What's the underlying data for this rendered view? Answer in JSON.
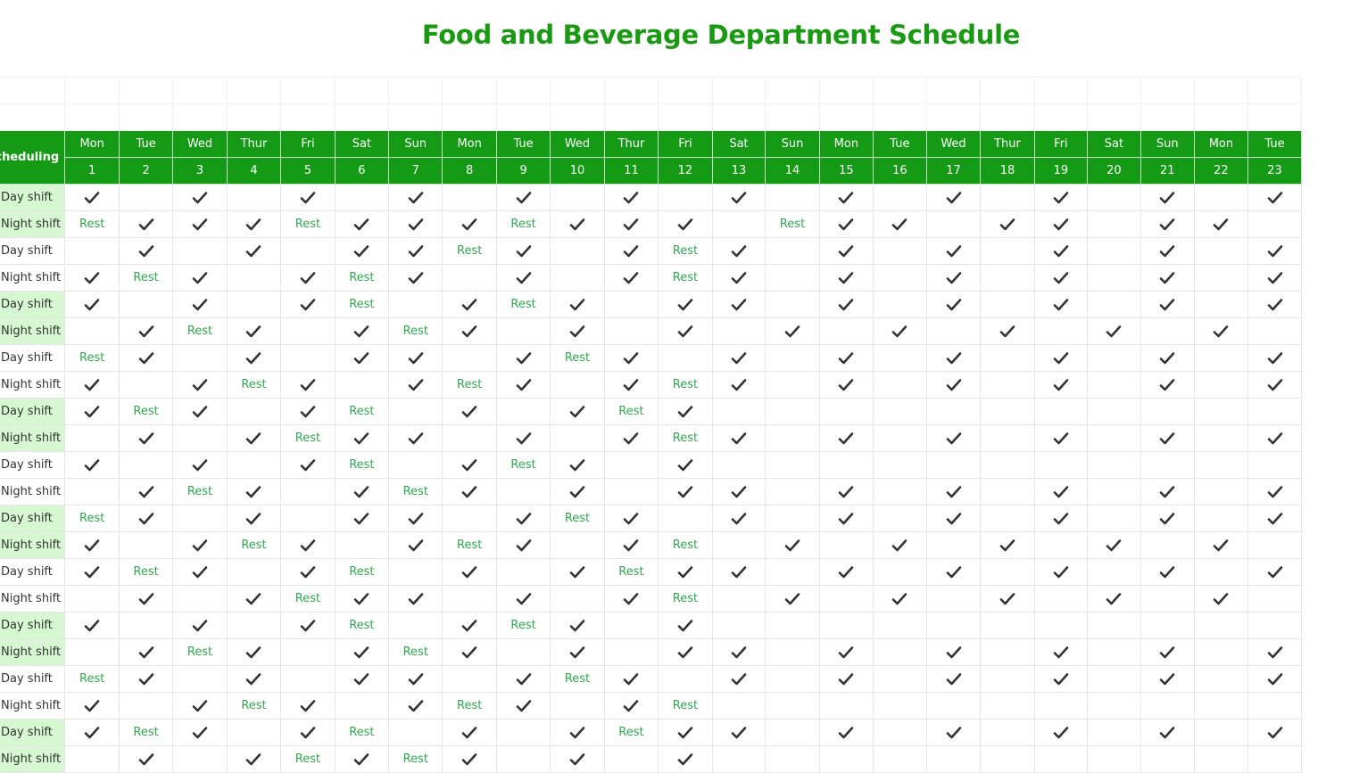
{
  "title": "Food and Beverage Department Schedule",
  "header_label": "Scheduling",
  "accent_color": "#149a14",
  "highlight_color": "#d6f7d2",
  "rest_color": "#2fa84f",
  "check_icon": "check-icon",
  "days": [
    {
      "dow": "Mon",
      "date": "1"
    },
    {
      "dow": "Tue",
      "date": "2"
    },
    {
      "dow": "Wed",
      "date": "3"
    },
    {
      "dow": "Thur",
      "date": "4"
    },
    {
      "dow": "Fri",
      "date": "5"
    },
    {
      "dow": "Sat",
      "date": "6"
    },
    {
      "dow": "Sun",
      "date": "7"
    },
    {
      "dow": "Mon",
      "date": "8"
    },
    {
      "dow": "Tue",
      "date": "9"
    },
    {
      "dow": "Wed",
      "date": "10"
    },
    {
      "dow": "Thur",
      "date": "11"
    },
    {
      "dow": "Fri",
      "date": "12"
    },
    {
      "dow": "Sat",
      "date": "13"
    },
    {
      "dow": "Sun",
      "date": "14"
    },
    {
      "dow": "Mon",
      "date": "15"
    },
    {
      "dow": "Tue",
      "date": "16"
    },
    {
      "dow": "Wed",
      "date": "17"
    },
    {
      "dow": "Thur",
      "date": "18"
    },
    {
      "dow": "Fri",
      "date": "19"
    },
    {
      "dow": "Sat",
      "date": "20"
    },
    {
      "dow": "Sun",
      "date": "21"
    },
    {
      "dow": "Mon",
      "date": "22"
    },
    {
      "dow": "Tue",
      "date": "23"
    }
  ],
  "rows": [
    {
      "label": "Day shift",
      "highlight": true,
      "cells": [
        "C",
        "",
        "C",
        "",
        "C",
        "",
        "C",
        "",
        "C",
        "",
        "C",
        "",
        "C",
        "",
        "C",
        "",
        "C",
        "",
        "C",
        "",
        "C",
        "",
        "C"
      ]
    },
    {
      "label": "Night shift",
      "highlight": true,
      "cells": [
        "R",
        "C",
        "C",
        "C",
        "R",
        "C",
        "C",
        "C",
        "R",
        "C",
        "C",
        "C",
        "",
        "R",
        "C",
        "C",
        "",
        "C",
        "C",
        "",
        "C",
        "C",
        ""
      ]
    },
    {
      "label": "Day shift",
      "highlight": false,
      "cells": [
        "",
        "C",
        "",
        "C",
        "",
        "C",
        "C",
        "R",
        "C",
        "",
        "C",
        "R",
        "C",
        "",
        "C",
        "",
        "C",
        "",
        "C",
        "",
        "C",
        "",
        "C"
      ]
    },
    {
      "label": "Night shift",
      "highlight": false,
      "cells": [
        "C",
        "R",
        "C",
        "",
        "C",
        "R",
        "C",
        "",
        "C",
        "",
        "C",
        "R",
        "C",
        "",
        "C",
        "",
        "C",
        "",
        "C",
        "",
        "C",
        "",
        "C"
      ]
    },
    {
      "label": "Day shift",
      "highlight": true,
      "cells": [
        "C",
        "",
        "C",
        "",
        "C",
        "R",
        "",
        "C",
        "R",
        "C",
        "",
        "C",
        "C",
        "",
        "C",
        "",
        "C",
        "",
        "C",
        "",
        "C",
        "",
        "C"
      ]
    },
    {
      "label": "Night shift",
      "highlight": true,
      "cells": [
        "",
        "C",
        "R",
        "C",
        "",
        "C",
        "R",
        "C",
        "",
        "C",
        "",
        "C",
        "",
        "C",
        "",
        "C",
        "",
        "C",
        "",
        "C",
        "",
        "C",
        ""
      ]
    },
    {
      "label": "Day shift",
      "highlight": false,
      "cells": [
        "R",
        "C",
        "",
        "C",
        "",
        "C",
        "C",
        "",
        "C",
        "R",
        "C",
        "",
        "C",
        "",
        "C",
        "",
        "C",
        "",
        "C",
        "",
        "C",
        "",
        "C"
      ]
    },
    {
      "label": "Night shift",
      "highlight": false,
      "cells": [
        "C",
        "",
        "C",
        "R",
        "C",
        "",
        "C",
        "R",
        "C",
        "",
        "C",
        "R",
        "C",
        "",
        "C",
        "",
        "C",
        "",
        "C",
        "",
        "C",
        "",
        "C"
      ]
    },
    {
      "label": "Day shift",
      "highlight": true,
      "cells": [
        "C",
        "R",
        "C",
        "",
        "C",
        "R",
        "",
        "C",
        "",
        "C",
        "R",
        "C",
        "",
        "",
        "",
        "",
        "",
        "",
        "",
        "",
        "",
        "",
        ""
      ]
    },
    {
      "label": "Night shift",
      "highlight": true,
      "cells": [
        "",
        "C",
        "",
        "C",
        "R",
        "C",
        "C",
        "",
        "C",
        "",
        "C",
        "R",
        "C",
        "",
        "C",
        "",
        "C",
        "",
        "C",
        "",
        "C",
        "",
        "C"
      ]
    },
    {
      "label": "Day shift",
      "highlight": false,
      "cells": [
        "C",
        "",
        "C",
        "",
        "C",
        "R",
        "",
        "C",
        "R",
        "C",
        "",
        "C",
        "",
        "",
        "",
        "",
        "",
        "",
        "",
        "",
        "",
        "",
        ""
      ]
    },
    {
      "label": "Night shift",
      "highlight": false,
      "cells": [
        "",
        "C",
        "R",
        "C",
        "",
        "C",
        "R",
        "C",
        "",
        "C",
        "",
        "C",
        "C",
        "",
        "C",
        "",
        "C",
        "",
        "C",
        "",
        "C",
        "",
        "C"
      ]
    },
    {
      "label": "Day shift",
      "highlight": true,
      "cells": [
        "R",
        "C",
        "",
        "C",
        "",
        "C",
        "C",
        "",
        "C",
        "R",
        "C",
        "",
        "C",
        "",
        "C",
        "",
        "C",
        "",
        "C",
        "",
        "C",
        "",
        "C"
      ]
    },
    {
      "label": "Night shift",
      "highlight": true,
      "cells": [
        "C",
        "",
        "C",
        "R",
        "C",
        "",
        "C",
        "R",
        "C",
        "",
        "C",
        "R",
        "",
        "C",
        "",
        "C",
        "",
        "C",
        "",
        "C",
        "",
        "C",
        ""
      ]
    },
    {
      "label": "Day shift",
      "highlight": false,
      "cells": [
        "C",
        "R",
        "C",
        "",
        "C",
        "R",
        "",
        "C",
        "",
        "C",
        "R",
        "C",
        "C",
        "",
        "C",
        "",
        "C",
        "",
        "C",
        "",
        "C",
        "",
        "C"
      ]
    },
    {
      "label": "Night shift",
      "highlight": false,
      "cells": [
        "",
        "C",
        "",
        "C",
        "R",
        "C",
        "C",
        "",
        "C",
        "",
        "C",
        "R",
        "",
        "C",
        "",
        "C",
        "",
        "C",
        "",
        "C",
        "",
        "C",
        ""
      ]
    },
    {
      "label": "Day shift",
      "highlight": true,
      "cells": [
        "C",
        "",
        "C",
        "",
        "C",
        "R",
        "",
        "C",
        "R",
        "C",
        "",
        "C",
        "",
        "",
        "",
        "",
        "",
        "",
        "",
        "",
        "",
        "",
        ""
      ]
    },
    {
      "label": "Night shift",
      "highlight": true,
      "cells": [
        "",
        "C",
        "R",
        "C",
        "",
        "C",
        "R",
        "C",
        "",
        "C",
        "",
        "C",
        "C",
        "",
        "C",
        "",
        "C",
        "",
        "C",
        "",
        "C",
        "",
        "C"
      ]
    },
    {
      "label": "Day shift",
      "highlight": false,
      "cells": [
        "R",
        "C",
        "",
        "C",
        "",
        "C",
        "C",
        "",
        "C",
        "R",
        "C",
        "",
        "C",
        "",
        "C",
        "",
        "C",
        "",
        "C",
        "",
        "C",
        "",
        "C"
      ]
    },
    {
      "label": "Night shift",
      "highlight": false,
      "cells": [
        "C",
        "",
        "C",
        "R",
        "C",
        "",
        "C",
        "R",
        "C",
        "",
        "C",
        "R",
        "",
        "",
        "",
        "",
        "",
        "",
        "",
        "",
        "",
        "",
        ""
      ]
    },
    {
      "label": "Day shift",
      "highlight": true,
      "cells": [
        "C",
        "R",
        "C",
        "",
        "C",
        "R",
        "",
        "C",
        "",
        "C",
        "R",
        "C",
        "C",
        "",
        "C",
        "",
        "C",
        "",
        "C",
        "",
        "C",
        "",
        "C"
      ]
    },
    {
      "label": "Night shift",
      "highlight": true,
      "cells": [
        "",
        "C",
        "",
        "C",
        "R",
        "C",
        "R",
        "C",
        "",
        "C",
        "",
        "C",
        "",
        "",
        "",
        "",
        "",
        "",
        "",
        "",
        "",
        "",
        ""
      ]
    }
  ],
  "rest_label": "Rest"
}
